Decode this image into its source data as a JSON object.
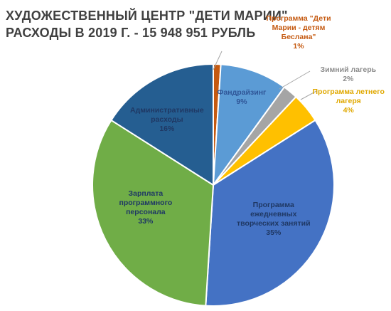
{
  "title_lines": [
    "ХУДОЖЕСТВЕННЫЙ ЦЕНТР \"ДЕТИ МАРИИ\"",
    "РАСХОДЫ  В 2019 Г. - 15 948 951 РУБЛЬ"
  ],
  "chart_data": {
    "type": "pie",
    "title": "ХУДОЖЕСТВЕННЫЙ ЦЕНТР \"ДЕТИ МАРИИ\" РАСХОДЫ  В 2019 Г. - 15 948 951 РУБЛЬ",
    "slices": [
      {
        "label_lines": [
          "Программа  \"Дети",
          "Марии - детям",
          "Беслана\""
        ],
        "percent_label": "1%",
        "value": 1,
        "color": "#C55A11",
        "label_color": "#C55A11"
      },
      {
        "label_lines": [
          "Фандрайзинг"
        ],
        "percent_label": "9%",
        "value": 9,
        "color": "#5B9BD5",
        "label_color": "#2F5597"
      },
      {
        "label_lines": [
          "Зимний лагерь"
        ],
        "percent_label": "2%",
        "value": 2,
        "color": "#A5A5A5",
        "label_color": "#8C8C8C"
      },
      {
        "label_lines": [
          "Программа  летнего",
          "лагеря"
        ],
        "percent_label": "4%",
        "value": 4,
        "color": "#FFC000",
        "label_color": "#E0A800"
      },
      {
        "label_lines": [
          "Программа",
          "ежедневных",
          "творческих  занятий"
        ],
        "percent_label": "35%",
        "value": 35,
        "color": "#4472C4",
        "label_color": "#1F3864"
      },
      {
        "label_lines": [
          "Зарплата",
          "программного",
          "персонала"
        ],
        "percent_label": "33%",
        "value": 33,
        "color": "#70AD47",
        "label_color": "#1F3864"
      },
      {
        "label_lines": [
          "Административные",
          "расходы"
        ],
        "percent_label": "16%",
        "value": 16,
        "color": "#255E91",
        "label_color": "#1F3864"
      }
    ]
  }
}
